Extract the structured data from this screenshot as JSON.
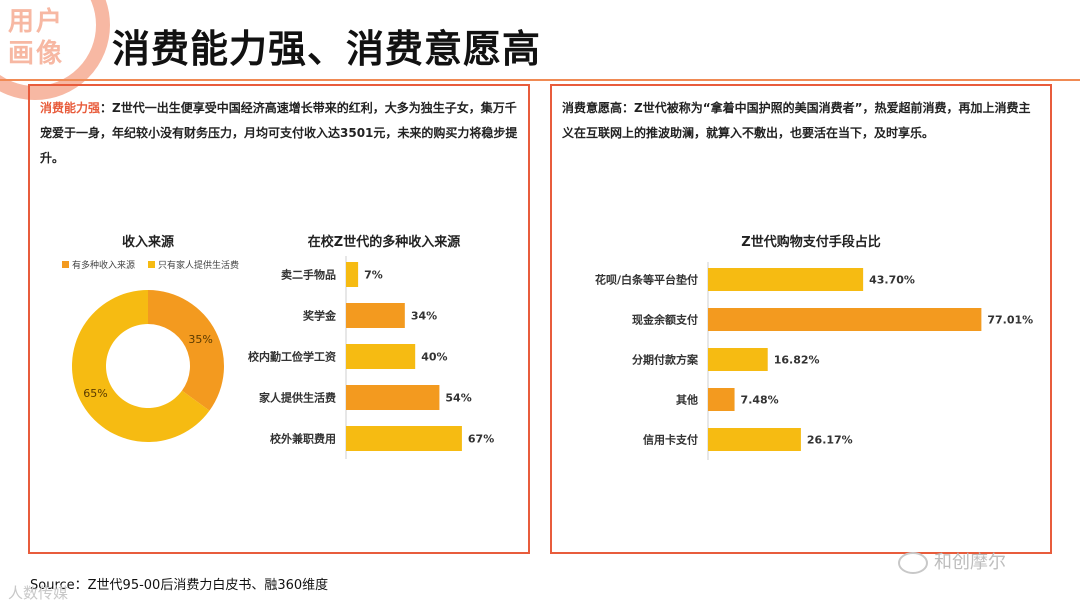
{
  "corner_badge": "用户画像",
  "title": "消费能力强、消费意愿高",
  "left_panel": {
    "desc_lead": "消费能力强",
    "desc_body": "：Z世代一出生便享受中国经济高速增长带来的红利，大多为独生子女，集万千宠爱于一身，年纪较小没有财务压力，月均可支付收入达3501元，未来的购买力将稳步提升。"
  },
  "right_panel": {
    "desc_lead": "消费意愿高",
    "desc_body": "：Z世代被称为“拿着中国护照的美国消费者”，热爱超前消费，再加上消费主义在互联网上的推波助澜，就算入不敷出，也要活在当下，及时享乐。"
  },
  "chart_data": [
    {
      "type": "pie",
      "title": "收入来源",
      "labels": [
        "有多种收入来源",
        "只有家人提供生活费"
      ],
      "values": [
        35,
        65
      ],
      "value_labels": [
        "35%",
        "65%"
      ],
      "colors": [
        "#f39a1f",
        "#f6bb12"
      ],
      "donut": true,
      "legend": "top"
    },
    {
      "type": "bar",
      "title": "在校Z世代的多种收入来源",
      "orientation": "horizontal",
      "categories": [
        "卖二手物品",
        "奖学金",
        "校内勤工俭学工资",
        "家人提供生活费",
        "校外兼职费用"
      ],
      "values": [
        7,
        34,
        40,
        54,
        67
      ],
      "value_labels": [
        "7%",
        "34%",
        "40%",
        "54%",
        "67%"
      ],
      "colors": [
        "#f6bb12",
        "#f39a1f",
        "#f6bb12",
        "#f39a1f",
        "#f6bb12"
      ]
    },
    {
      "type": "bar",
      "title": "Z世代购物支付手段占比",
      "orientation": "horizontal",
      "categories": [
        "花呗/白条等平台垫付",
        "现金余额支付",
        "分期付款方案",
        "其他",
        "信用卡支付"
      ],
      "values": [
        43.7,
        77.01,
        16.82,
        7.48,
        26.17
      ],
      "value_labels": [
        "43.70%",
        "77.01%",
        "16.82%",
        "7.48%",
        "26.17%"
      ],
      "colors": [
        "#f6bb12",
        "#f39a1f",
        "#f6bb12",
        "#f39a1f",
        "#f6bb12"
      ]
    }
  ],
  "source": "Source：Z世代95-00后消费力白皮书、融360维度",
  "watermark_left": "人数传媒",
  "watermark_right": "和创摩尔"
}
